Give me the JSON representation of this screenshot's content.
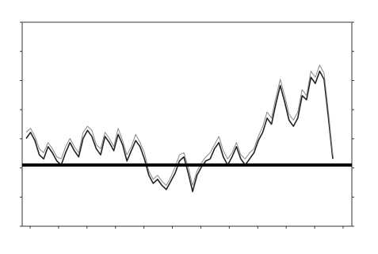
{
  "chart_data": {
    "type": "line",
    "title": "",
    "subtitle": "",
    "top_right_note": "",
    "series": [
      {
        "name": "",
        "color": "#222222",
        "values": [
          6.3,
          6.6,
          6.2,
          5.5,
          5.3,
          5.9,
          5.6,
          5.2,
          5.0,
          5.6,
          6.1,
          5.7,
          5.4,
          6.3,
          6.7,
          6.4,
          5.8,
          5.5,
          6.4,
          6.1,
          5.7,
          6.5,
          6.0,
          5.2,
          5.7,
          6.2,
          5.9,
          5.3,
          4.5,
          4.1,
          4.3,
          4.0,
          3.8,
          4.2,
          4.6,
          5.2,
          5.4,
          4.6,
          3.7,
          4.5,
          4.9,
          5.2,
          5.3,
          5.8,
          6.1,
          5.4,
          5.0,
          5.4,
          5.9,
          5.3,
          5.0,
          5.3,
          5.6,
          6.2,
          6.6,
          7.3,
          7.0,
          8.0,
          8.9,
          8.1,
          7.2,
          6.9,
          7.3,
          8.4,
          8.2,
          9.3,
          9.0,
          9.6,
          9.2,
          7.3,
          5.3
        ]
      },
      {
        "name": "",
        "color": "#888888",
        "values": [
          6.6,
          6.8,
          6.4,
          5.8,
          5.6,
          6.1,
          5.8,
          5.4,
          5.3,
          5.9,
          6.3,
          5.9,
          5.6,
          6.6,
          6.9,
          6.7,
          6.0,
          5.8,
          6.6,
          6.3,
          5.9,
          6.8,
          6.2,
          5.5,
          5.9,
          6.5,
          6.1,
          5.6,
          4.7,
          4.3,
          4.5,
          4.2,
          4.0,
          4.4,
          4.9,
          5.5,
          5.6,
          4.9,
          4.0,
          4.7,
          5.1,
          5.4,
          5.6,
          6.0,
          6.4,
          5.7,
          5.3,
          5.6,
          6.1,
          5.5,
          5.3,
          5.6,
          5.8,
          6.4,
          6.9,
          7.6,
          7.3,
          8.3,
          9.2,
          8.4,
          7.5,
          7.2,
          7.6,
          8.7,
          8.4,
          9.6,
          9.3,
          9.9,
          9.5,
          7.6,
          5.5
        ]
      }
    ],
    "baseline": 5.0,
    "end_label": "",
    "x_tick_labels": [
      "",
      "",
      "",
      "",
      "",
      "",
      "",
      "",
      "",
      "",
      "",
      ""
    ],
    "y_left_tick_labels": [
      "",
      "",
      "",
      "",
      "",
      "",
      "",
      ""
    ],
    "y_right_tick_labels": [
      "",
      "",
      "",
      "",
      "",
      "",
      "",
      ""
    ],
    "xlabel": "",
    "ylabel": "",
    "ylim": [
      2,
      12
    ],
    "grid": false,
    "footer_note": ""
  }
}
